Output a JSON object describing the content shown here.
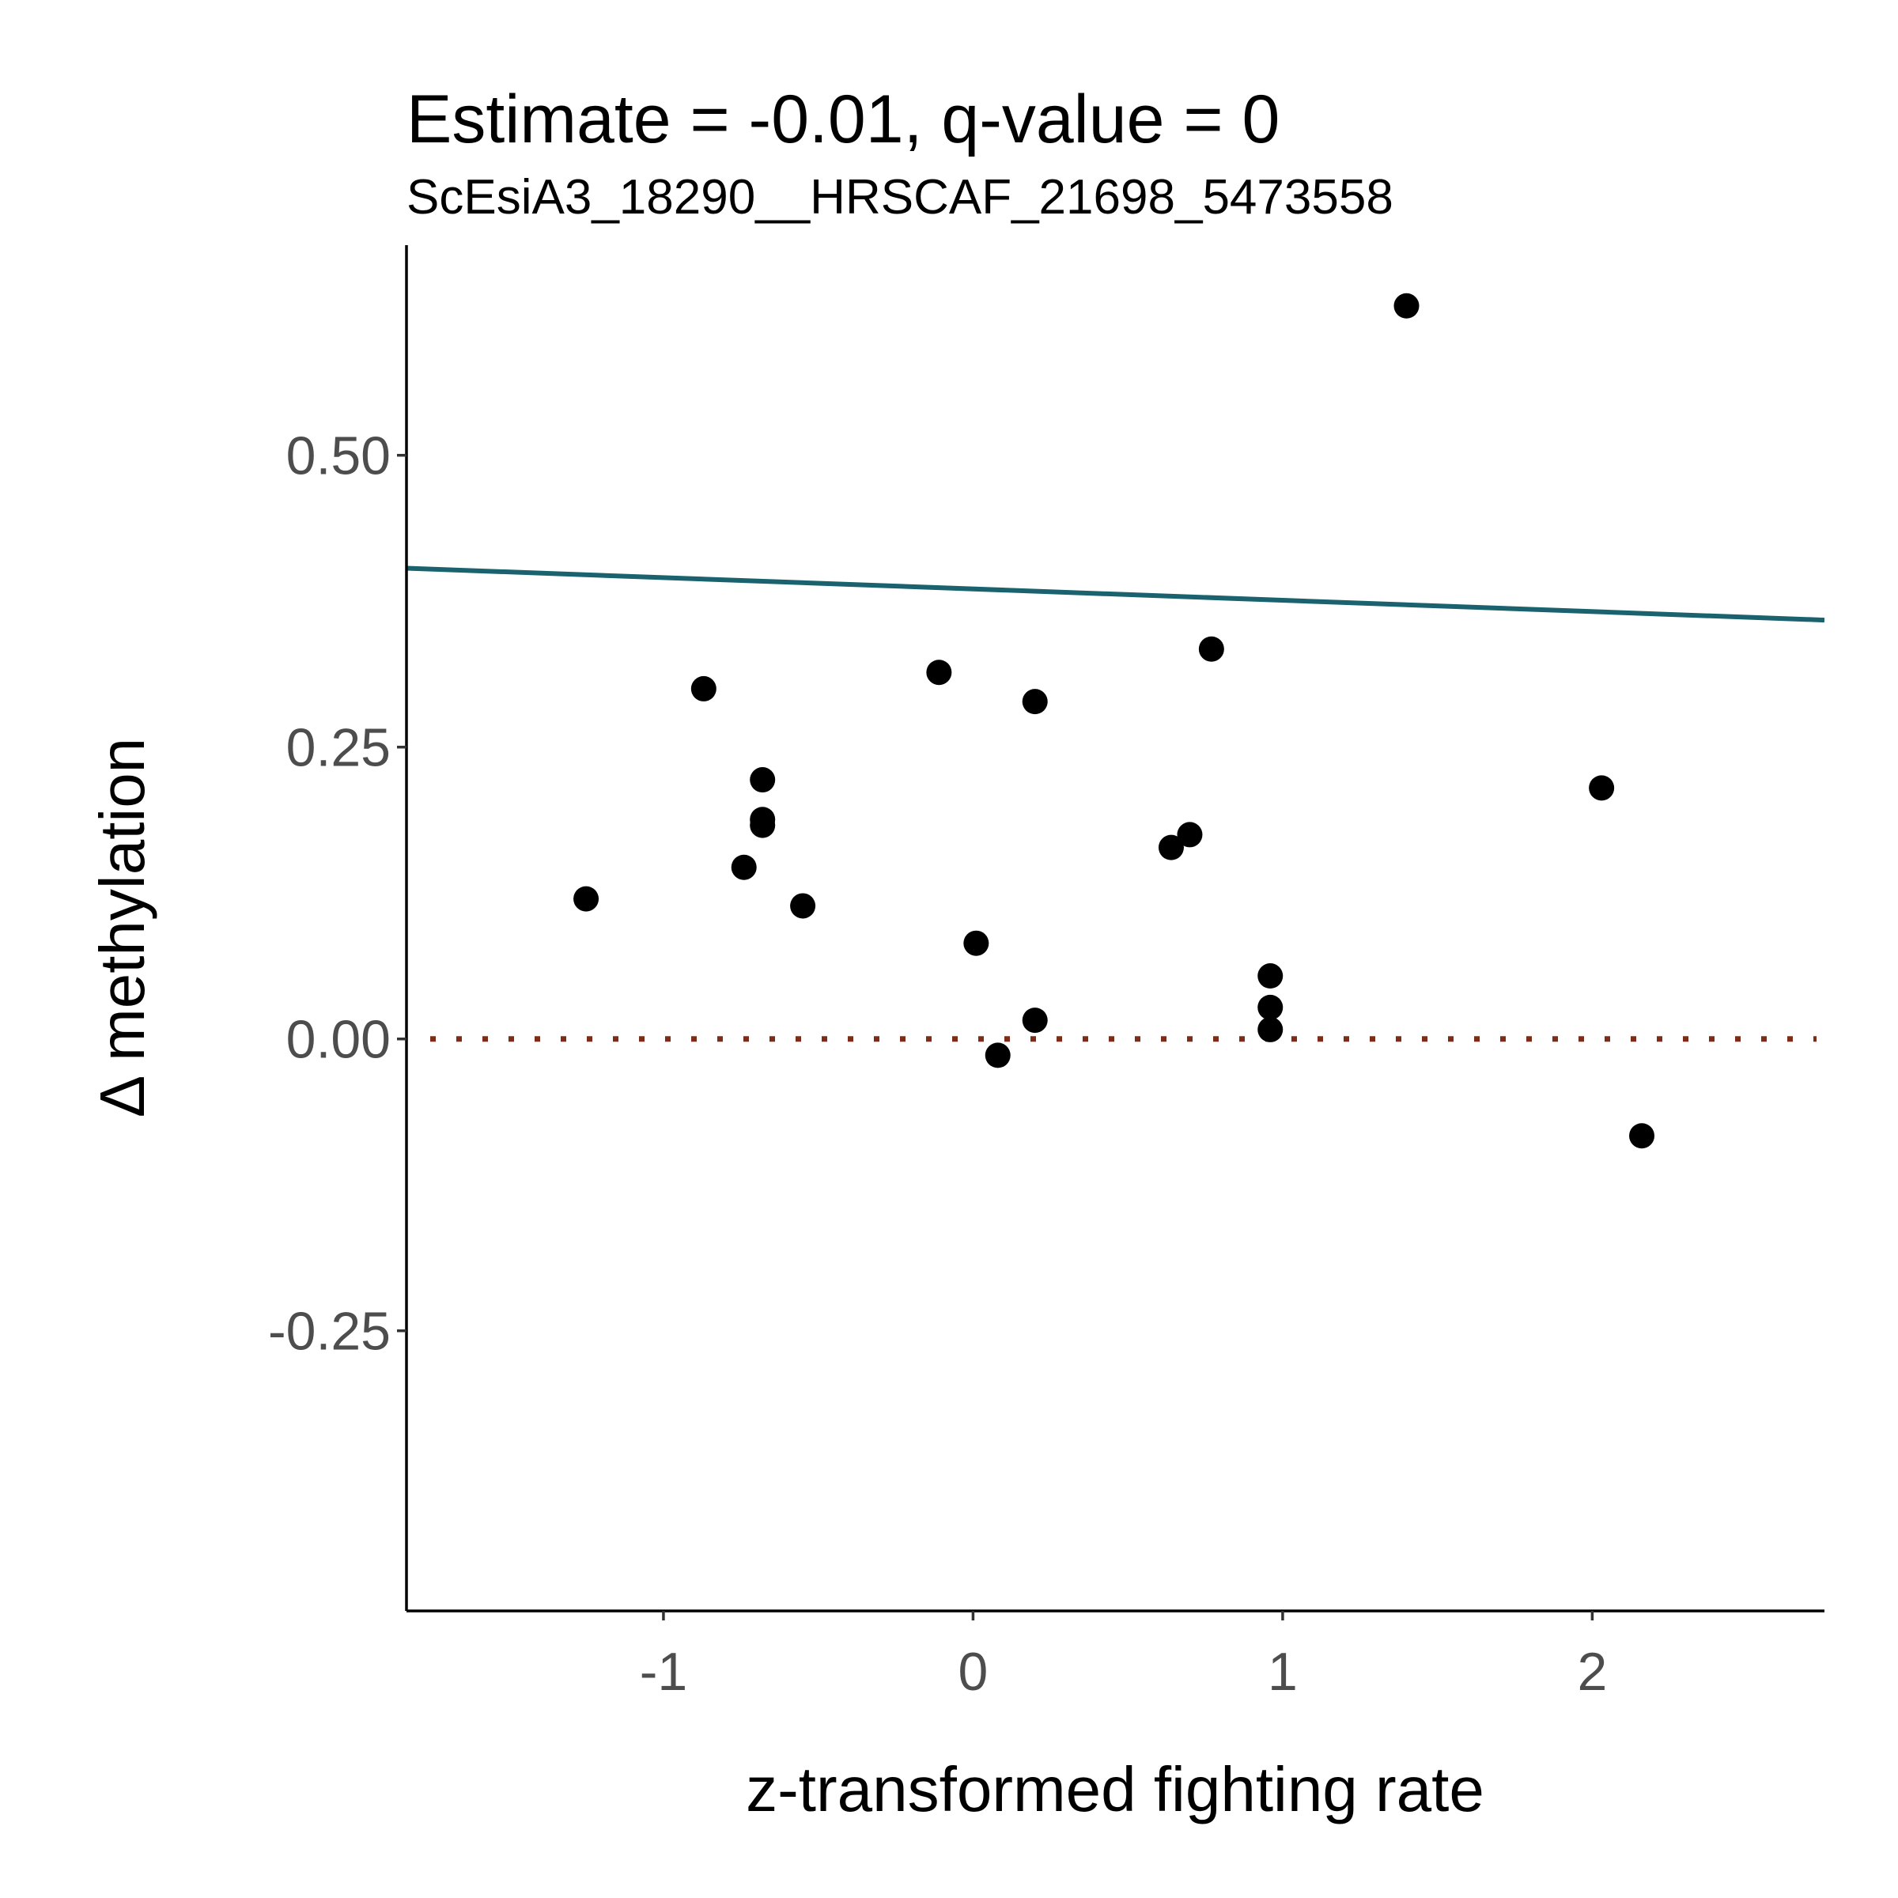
{
  "chart_data": {
    "type": "scatter",
    "title": "Estimate = -0.01, q-value = 0",
    "subtitle": "ScEsiA3_18290__HRSCAF_21698_5473558",
    "xlabel": "z-transformed fighting rate",
    "ylabel": "Δ methylation",
    "xlim": [
      -1.83,
      2.75
    ],
    "ylim": [
      -0.49,
      0.68
    ],
    "xticks": [
      -1,
      0,
      1,
      2
    ],
    "xtick_labels": [
      "-1",
      "0",
      "1",
      "2"
    ],
    "yticks": [
      -0.25,
      0,
      0.25,
      0.5
    ],
    "ytick_labels": [
      "-0.25",
      "0.00",
      "0.25",
      "0.50"
    ],
    "grid": false,
    "legend": "none",
    "points": [
      {
        "x": -1.25,
        "y": 0.12
      },
      {
        "x": -0.87,
        "y": 0.3
      },
      {
        "x": -0.74,
        "y": 0.147
      },
      {
        "x": -0.68,
        "y": 0.222
      },
      {
        "x": -0.68,
        "y": 0.188
      },
      {
        "x": -0.68,
        "y": 0.183
      },
      {
        "x": -0.55,
        "y": 0.114
      },
      {
        "x": -0.11,
        "y": 0.314
      },
      {
        "x": 0.01,
        "y": 0.082
      },
      {
        "x": 0.08,
        "y": -0.014
      },
      {
        "x": 0.2,
        "y": 0.289
      },
      {
        "x": 0.2,
        "y": 0.016
      },
      {
        "x": 0.64,
        "y": 0.164
      },
      {
        "x": 0.7,
        "y": 0.175
      },
      {
        "x": 0.77,
        "y": 0.334
      },
      {
        "x": 0.96,
        "y": 0.054
      },
      {
        "x": 0.96,
        "y": 0.027
      },
      {
        "x": 0.96,
        "y": 0.008
      },
      {
        "x": 1.4,
        "y": 0.628
      },
      {
        "x": 2.03,
        "y": 0.215
      },
      {
        "x": 2.16,
        "y": -0.083
      }
    ],
    "regression_line": {
      "intercept": 0.3855,
      "slope": -0.0097,
      "color": "#1a626e"
    },
    "reference_line": {
      "y": 0,
      "style": "dotted",
      "color": "#7b2d1a"
    },
    "point_color": "#000000"
  }
}
